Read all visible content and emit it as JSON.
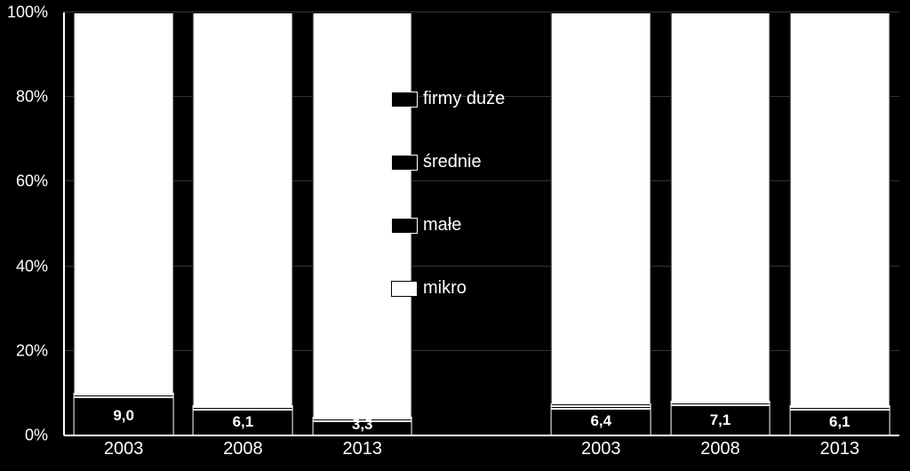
{
  "chart": {
    "type": "stacked-bar",
    "background_color": "#000000",
    "text_color": "#ffffff",
    "y": {
      "min": 0,
      "max": 100,
      "step": 20,
      "suffix": "%",
      "ticks": [
        "0%",
        "20%",
        "40%",
        "60%",
        "80%",
        "100%"
      ],
      "label_fontsize": 18
    },
    "x": {
      "categories": [
        "2003",
        "2008",
        "2013",
        "",
        "2003",
        "2008",
        "2013"
      ],
      "label_fontsize": 20
    },
    "series_order": [
      "mikro",
      "male",
      "srednie",
      "duze"
    ],
    "series_colors": {
      "mikro": "#ffffff",
      "male": "#000000",
      "srednie": "#000000",
      "duze": "#000000"
    },
    "series_borders": {
      "mikro": "#000000",
      "male": "#ffffff",
      "srednie": "#ffffff",
      "duze": "#ffffff"
    },
    "bars": [
      {
        "year": "2003",
        "mikro": 9.0,
        "male": 0.7,
        "srednie": 0.2,
        "duze": 0.1,
        "rest_to_100": 90.0,
        "label": "9,0"
      },
      {
        "year": "2008",
        "mikro": 6.1,
        "male": 0.7,
        "srednie": 0.2,
        "duze": 0.1,
        "rest_to_100": 92.9,
        "label": "6,1"
      },
      {
        "year": "2013",
        "mikro": 3.3,
        "male": 0.7,
        "srednie": 0.2,
        "duze": 0.1,
        "rest_to_100": 95.7,
        "label": "3,3"
      },
      null,
      {
        "year": "2003",
        "mikro": 6.4,
        "male": 0.7,
        "srednie": 0.2,
        "duze": 0.1,
        "rest_to_100": 92.6,
        "label": "6,4"
      },
      {
        "year": "2008",
        "mikro": 7.1,
        "male": 0.7,
        "srednie": 0.2,
        "duze": 0.1,
        "rest_to_100": 91.9,
        "label": "7,1"
      },
      {
        "year": "2013",
        "mikro": 6.1,
        "male": 0.7,
        "srednie": 0.2,
        "duze": 0.1,
        "rest_to_100": 92.9,
        "label": "6,1"
      }
    ],
    "data_label_fontsize": 17,
    "grid_color": "#333333",
    "legend": {
      "items": [
        {
          "key": "duze",
          "label": "firmy duże",
          "swatch": "filled-black"
        },
        {
          "key": "srednie",
          "label": "średnie",
          "swatch": "filled-black"
        },
        {
          "key": "male",
          "label": "małe",
          "swatch": "filled-black"
        },
        {
          "key": "mikro",
          "label": "mikro",
          "swatch": "filled-white"
        }
      ],
      "label_fontsize": 20
    }
  }
}
